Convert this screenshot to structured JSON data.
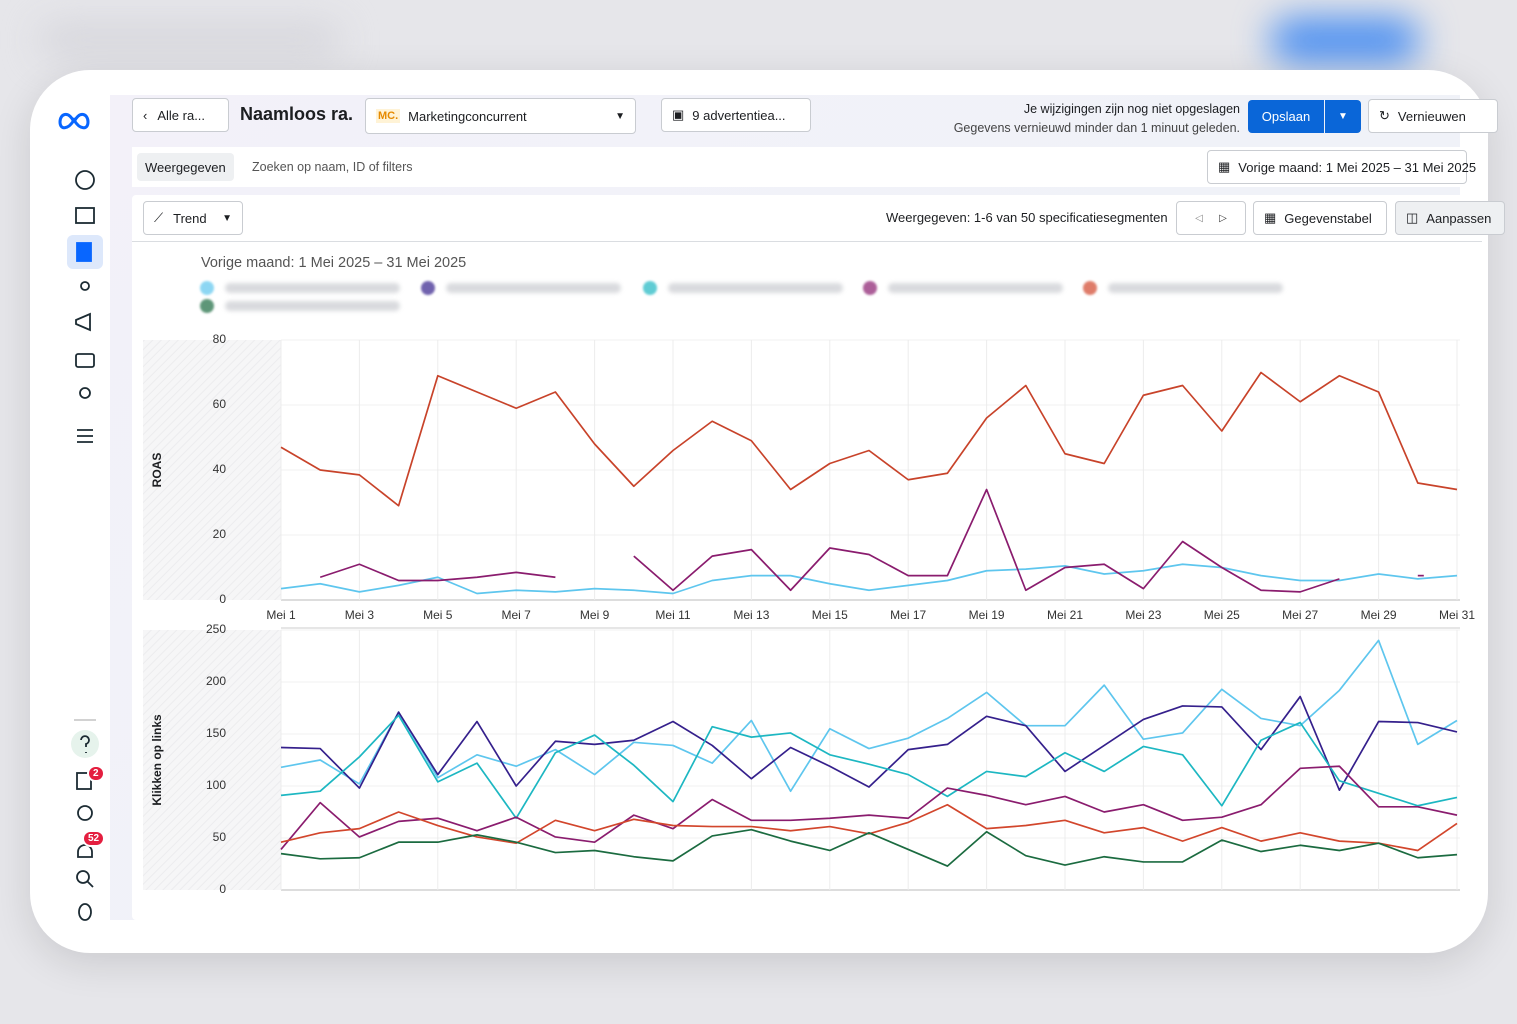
{
  "ui": {
    "back": "Alle ra...",
    "report_name": "Naamloos ra.",
    "account_logo": "MC.",
    "account": "Marketingconcurrent",
    "ads": "9 advertentiea...",
    "unsaved": "Je wijzigingen zijn nog niet opgeslagen",
    "refreshed": "Gegevens vernieuwd minder dan 1 minuut geleden.",
    "save": "Opslaan",
    "refresh": "Vernieuwen",
    "view_tab": "Weergegeven",
    "search": "Zoeken op naam, ID of filters",
    "date_range": "Vorige maand: 1 Mei 2025 – 31 Mei 2025",
    "trend": "Trend",
    "segments": "Weergegeven: 1-6 van 50 specificatiesegmenten",
    "data_table": "Gegevenstabel",
    "customize": "Aanpassen",
    "badge_reports": "2",
    "badge_notifications": "52",
    "chart_title": "Vorige maand: 1 Mei 2025 – 31 Mei 2025"
  },
  "chart_data": [
    {
      "type": "line",
      "ylabel": "ROAS",
      "categories": [
        "Mei 1",
        null,
        "Mei 3",
        null,
        "Mei 5",
        null,
        "Mei 7",
        null,
        "Mei 9",
        null,
        "Mei 11",
        null,
        "Mei 13",
        null,
        "Mei 15",
        null,
        "Mei 17",
        null,
        "Mei 19",
        null,
        "Mei 21",
        null,
        "Mei 23",
        null,
        "Mei 25",
        null,
        "Mei 27",
        null,
        "Mei 29",
        null,
        "Mei 31"
      ],
      "ylim": [
        0,
        80
      ],
      "yticks": [
        0,
        20,
        40,
        60,
        80
      ],
      "grid": true,
      "series": [
        {
          "color": "#5ec6ee",
          "values": [
            3.5,
            5,
            2.5,
            4.5,
            7,
            2,
            3,
            2.5,
            3.5,
            3,
            2,
            6,
            7.5,
            7.5,
            5,
            3,
            4.5,
            6,
            9,
            9.5,
            10.5,
            8,
            9,
            11,
            10,
            7.5,
            6,
            6,
            8,
            6.5,
            7.5
          ]
        },
        {
          "color": "#8a1c6e",
          "values": [
            null,
            7,
            11,
            6,
            6,
            7,
            8.5,
            7,
            null,
            13.5,
            3,
            13.5,
            15.5,
            3,
            16,
            14,
            7.5,
            7.5,
            34,
            3,
            10,
            11,
            3.5,
            18,
            10,
            3,
            2.5,
            6.5,
            null,
            7.5,
            null
          ]
        },
        {
          "color": "#c8432a",
          "values": [
            47,
            40,
            38.5,
            29,
            69,
            64,
            59,
            64,
            48,
            35,
            46,
            55,
            49,
            34,
            42,
            46,
            37,
            39,
            56,
            66,
            45,
            42,
            63,
            66,
            52,
            70,
            61,
            69,
            64,
            36,
            34
          ]
        }
      ]
    },
    {
      "type": "line",
      "ylabel": "Klikken op links",
      "categories": [
        null,
        null,
        null,
        null,
        null,
        null,
        null,
        null,
        null,
        null,
        null,
        null,
        null,
        null,
        null,
        null,
        null,
        null,
        null,
        null,
        null,
        null,
        null,
        null,
        null,
        null,
        null,
        null,
        null,
        null,
        null
      ],
      "ylim": [
        0,
        250
      ],
      "yticks": [
        0,
        50,
        100,
        150,
        200,
        250
      ],
      "grid": true,
      "series": [
        {
          "color": "#5ec6ee",
          "values": [
            118,
            125,
            102,
            171,
            108,
            130,
            119,
            135,
            111,
            142,
            139,
            122,
            163,
            95,
            155,
            136,
            146,
            165,
            190,
            158,
            158,
            197,
            145,
            151,
            193,
            165,
            158,
            192,
            240,
            140,
            163
          ]
        },
        {
          "color": "#35208c",
          "values": [
            137,
            136,
            98,
            171,
            111,
            162,
            100,
            143,
            140,
            144,
            162,
            139,
            107,
            137,
            119,
            99,
            135,
            140,
            167,
            158,
            114,
            139,
            164,
            177,
            176,
            135,
            186,
            96,
            162,
            161,
            152
          ]
        },
        {
          "color": "#1db7c2",
          "values": [
            91,
            95,
            128,
            168,
            104,
            122,
            69,
            132,
            149,
            120,
            85,
            157,
            147,
            151,
            130,
            121,
            111,
            90,
            114,
            109,
            132,
            114,
            138,
            130,
            81,
            144,
            161,
            105,
            93,
            81,
            89
          ]
        },
        {
          "color": "#8a1c6e",
          "values": [
            39,
            84,
            51,
            66,
            69,
            57,
            70,
            51,
            46,
            72,
            59,
            87,
            67,
            67,
            69,
            72,
            69,
            98,
            91,
            82,
            90,
            75,
            82,
            67,
            70,
            82,
            117,
            119,
            80,
            80,
            72
          ]
        },
        {
          "color": "#d2462c",
          "values": [
            46,
            55,
            59,
            75,
            62,
            51,
            45,
            67,
            57,
            68,
            62,
            61,
            61,
            57,
            61,
            54,
            65,
            82,
            59,
            62,
            67,
            55,
            60,
            47,
            60,
            47,
            55,
            47,
            45,
            38,
            64
          ]
        },
        {
          "color": "#1b6b40",
          "values": [
            35,
            30,
            31,
            46,
            46,
            53,
            46,
            36,
            38,
            32,
            28,
            52,
            58,
            47,
            38,
            55,
            39,
            23,
            56,
            33,
            24,
            32,
            27,
            27,
            48,
            37,
            43,
            38,
            45,
            31,
            34
          ]
        }
      ]
    }
  ]
}
